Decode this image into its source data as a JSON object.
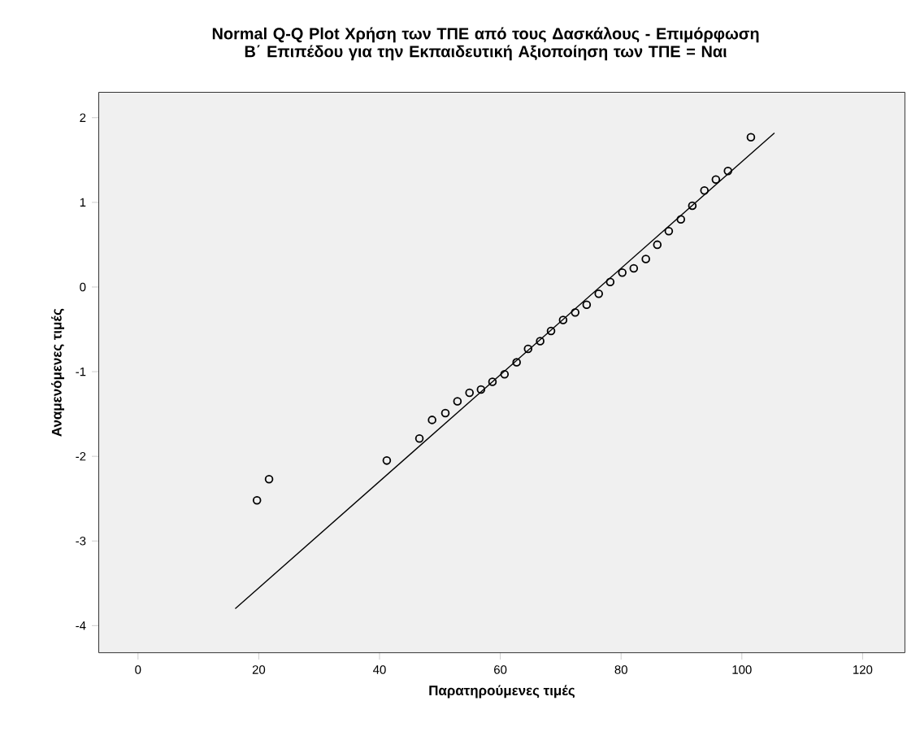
{
  "chart_data": {
    "type": "scatter",
    "title": "Normal Q-Q Plot Χρήση των ΤΠΕ από τους Δασκάλους - Επιμόρφωση Β΄ Επιπέδου για την Εκπαιδευτική Αξιοποίηση των ΤΠΕ = Ναι",
    "xlabel": "Παρατηρούμενες τιμές",
    "ylabel": "Αναμενόμενες τιμές",
    "xlim": [
      -6.5,
      127
    ],
    "ylim": [
      -4.32,
      2.3
    ],
    "xticks": [
      0,
      20,
      40,
      60,
      80,
      100,
      120
    ],
    "yticks": [
      -4,
      -3,
      -2,
      -1,
      0,
      1,
      2
    ],
    "grid": false,
    "series": [
      {
        "marker": "circle",
        "color": "#000000",
        "x": [
          19.7,
          21.7,
          41.2,
          46.6,
          48.7,
          50.9,
          52.9,
          54.9,
          56.8,
          58.7,
          60.7,
          62.7,
          64.6,
          66.6,
          68.4,
          70.4,
          72.4,
          74.3,
          76.3,
          78.2,
          80.2,
          82.1,
          84.1,
          86.0,
          87.9,
          89.9,
          91.8,
          93.8,
          95.7,
          97.7,
          101.5
        ],
        "values": [
          -2.52,
          -2.27,
          -2.05,
          -1.79,
          -1.57,
          -1.49,
          -1.35,
          -1.25,
          -1.21,
          -1.12,
          -1.03,
          -0.89,
          -0.73,
          -0.64,
          -0.52,
          -0.39,
          -0.3,
          -0.21,
          -0.08,
          0.06,
          0.17,
          0.22,
          0.33,
          0.5,
          0.66,
          0.8,
          0.96,
          1.14,
          1.27,
          1.37,
          1.77
        ]
      },
      {
        "type": "line",
        "marker": "none",
        "line_style": "solid",
        "color": "#000000",
        "x": [
          16.1,
          105.4
        ],
        "values": [
          -3.8,
          1.82
        ]
      }
    ]
  }
}
